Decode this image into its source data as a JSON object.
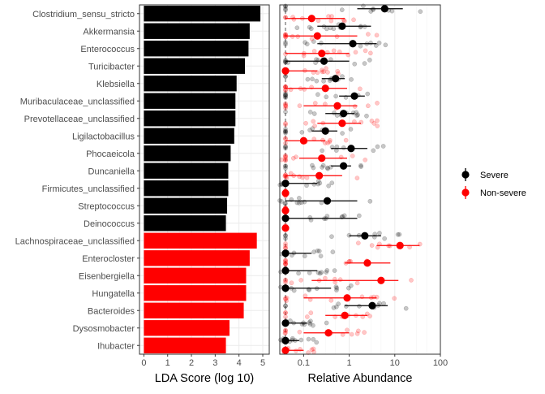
{
  "chart_data": [
    {
      "type": "bar",
      "xlabel": "LDA Score (log 10)",
      "ylabel": "",
      "xlim": [
        0,
        5
      ],
      "x_ticks": [
        "0",
        "1",
        "2",
        "3",
        "4",
        "5"
      ],
      "categories": [
        "Clostridium_sensu_stricto",
        "Akkermansia",
        "Enterococcus",
        "Turicibacter",
        "Klebsiella",
        "Muribaculaceae_unclassified",
        "Prevotellaceae_unclassified",
        "Ligilactobacillus",
        "Phocaeicola",
        "Duncaniella",
        "Firmicutes_unclassified",
        "Streptococcus",
        "Deinococcus",
        "Lachnospiraceae_unclassified",
        "Enterocloster",
        "Eisenbergiella",
        "Hungatella",
        "Bacteroides",
        "Dysosmobacter",
        "Ihubacter"
      ],
      "values": [
        4.9,
        4.45,
        4.4,
        4.25,
        3.9,
        3.85,
        3.85,
        3.8,
        3.65,
        3.55,
        3.55,
        3.5,
        3.45,
        4.75,
        4.45,
        4.3,
        4.3,
        4.2,
        3.6,
        3.45
      ],
      "groups": [
        "Severe",
        "Severe",
        "Severe",
        "Severe",
        "Severe",
        "Severe",
        "Severe",
        "Severe",
        "Severe",
        "Severe",
        "Severe",
        "Severe",
        "Severe",
        "Non-severe",
        "Non-severe",
        "Non-severe",
        "Non-severe",
        "Non-severe",
        "Non-severe",
        "Non-severe"
      ],
      "grid": true
    },
    {
      "type": "scatter",
      "xlabel": "Relative Abundance",
      "ylabel": "",
      "x_scale": "log",
      "xlim": [
        0.03,
        100
      ],
      "x_ticks": [
        "0.1",
        "1",
        "10",
        "100"
      ],
      "reference_line_x": 0.04,
      "categories": [
        "Clostridium_sensu_stricto",
        "Akkermansia",
        "Enterococcus",
        "Turicibacter",
        "Klebsiella",
        "Muribaculaceae_unclassified",
        "Prevotellaceae_unclassified",
        "Ligilactobacillus",
        "Phocaeicola",
        "Duncaniella",
        "Firmicutes_unclassified",
        "Streptococcus",
        "Deinococcus",
        "Lachnospiraceae_unclassified",
        "Enterocloster",
        "Eisenbergiella",
        "Hungatella",
        "Bacteroides",
        "Dysosmobacter",
        "Ihubacter"
      ],
      "series": [
        {
          "name": "Severe",
          "color": "#000000",
          "summary": [
            {
              "center": 6,
              "low": 1.5,
              "high": 15
            },
            {
              "center": 0.7,
              "low": 0.2,
              "high": 3
            },
            {
              "center": 1.2,
              "low": 0.2,
              "high": 4
            },
            {
              "center": 0.28,
              "low": 0.04,
              "high": 1
            },
            {
              "center": 0.5,
              "low": 0.25,
              "high": 0.8
            },
            {
              "center": 1.3,
              "low": 0.6,
              "high": 2.2
            },
            {
              "center": 0.75,
              "low": 0.3,
              "high": 1.3
            },
            {
              "center": 0.3,
              "low": 0.15,
              "high": 0.55
            },
            {
              "center": 1.1,
              "low": 0.4,
              "high": 2.5
            },
            {
              "center": 0.75,
              "low": 0.4,
              "high": 1.1
            },
            {
              "center": 0.04,
              "low": 0.04,
              "high": 0.2
            },
            {
              "center": 0.33,
              "low": 0.04,
              "high": 1.5
            },
            {
              "center": 0.04,
              "low": 0.04,
              "high": 1.5
            },
            {
              "center": 2.2,
              "low": 1,
              "high": 5
            },
            {
              "center": 0.04,
              "low": 0.04,
              "high": 0.15
            },
            {
              "center": 0.04,
              "low": 0.04,
              "high": 0.2
            },
            {
              "center": 0.04,
              "low": 0.04,
              "high": 0.4
            },
            {
              "center": 3.2,
              "low": 0.8,
              "high": 7
            },
            {
              "center": 0.04,
              "low": 0.04,
              "high": 0.12
            },
            {
              "center": 0.04,
              "low": 0.04,
              "high": 0.08
            }
          ]
        },
        {
          "name": "Non-severe",
          "color": "#ff0000",
          "summary": [
            {
              "center": 0.15,
              "low": 0.04,
              "high": 0.8
            },
            {
              "center": 0.2,
              "low": 0.04,
              "high": 1.5
            },
            {
              "center": 0.25,
              "low": 0.04,
              "high": 1
            },
            {
              "center": 0.04,
              "low": 0.04,
              "high": 0.2
            },
            {
              "center": 0.3,
              "low": 0.04,
              "high": 0.9
            },
            {
              "center": 0.55,
              "low": 0.1,
              "high": 1.5
            },
            {
              "center": 0.7,
              "low": 0.2,
              "high": 1.8
            },
            {
              "center": 0.1,
              "low": 0.04,
              "high": 0.3
            },
            {
              "center": 0.25,
              "low": 0.08,
              "high": 0.9
            },
            {
              "center": 0.22,
              "low": 0.04,
              "high": 0.7
            },
            {
              "center": 0.04,
              "low": 0.04,
              "high": 0.04
            },
            {
              "center": 0.04,
              "low": 0.04,
              "high": 0.04
            },
            {
              "center": 0.04,
              "low": 0.04,
              "high": 0.04
            },
            {
              "center": 13,
              "low": 4,
              "high": 35
            },
            {
              "center": 2.5,
              "low": 0.8,
              "high": 8
            },
            {
              "center": 5,
              "low": 0.15,
              "high": 12
            },
            {
              "center": 0.9,
              "low": 0.1,
              "high": 4
            },
            {
              "center": 0.8,
              "low": 0.3,
              "high": 2.5
            },
            {
              "center": 0.35,
              "low": 0.1,
              "high": 1
            },
            {
              "center": 0.04,
              "low": 0.04,
              "high": 0.1
            }
          ]
        }
      ],
      "legend": {
        "position": "right",
        "entries": [
          "Severe",
          "Non-severe"
        ]
      }
    }
  ]
}
